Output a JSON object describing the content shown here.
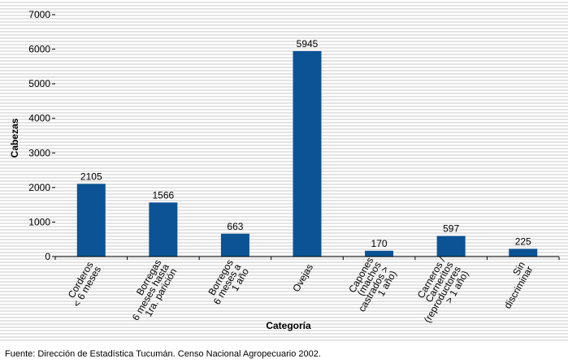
{
  "chart_data": {
    "type": "bar",
    "categories": [
      [
        "Corderos",
        "< 6 meses"
      ],
      [
        "Borregas",
        "6 meses hasta",
        "1ra. parición"
      ],
      [
        "Borregos",
        "6 meses a",
        "1 año"
      ],
      [
        "Ovejas"
      ],
      [
        "Capones",
        "(machos",
        "castrados >",
        "1 año)"
      ],
      [
        "Carneros /",
        "Carneritos",
        "(reproductores",
        "> 1 año)"
      ],
      [
        "Sin",
        "discriminar"
      ]
    ],
    "values": [
      2105,
      1566,
      663,
      5945,
      170,
      597,
      225
    ],
    "ylabel": "Cabezas",
    "xlabel": "Categoría",
    "ylim": [
      0,
      7000
    ],
    "yticks": [
      0,
      1000,
      2000,
      3000,
      4000,
      5000,
      6000,
      7000
    ],
    "bar_color": "#0b5394",
    "background": "striped gray",
    "grid": false
  },
  "source": "Fuente: Dirección de Estadística Tucumán. Censo Nacional Agropecuario  2002."
}
